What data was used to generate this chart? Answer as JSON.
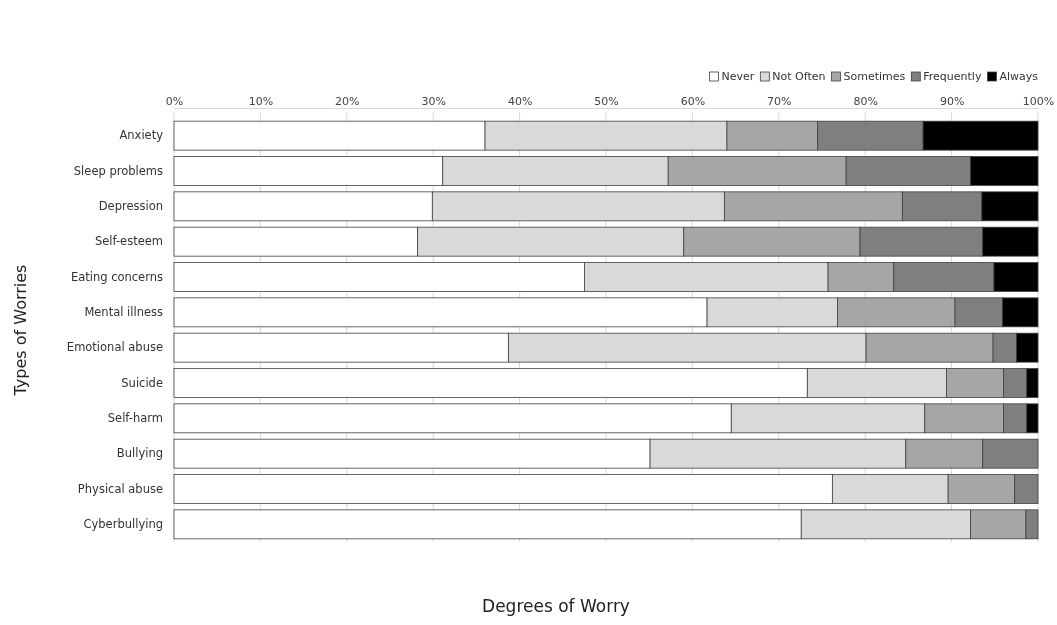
{
  "chart_data": {
    "type": "bar",
    "orientation": "horizontal",
    "stacked": true,
    "xlabel": "Degrees of Worry",
    "ylabel": "Types of Worries",
    "categories": [
      "Anxiety",
      "Sleep problems",
      "Depression",
      "Self-esteem",
      "Eating concerns",
      "Mental illness",
      "Emotional abuse",
      "Suicide",
      "Self-harm",
      "Bullying",
      "Physical abuse",
      "Cyberbullying"
    ],
    "series": [
      {
        "name": "Never",
        "color": "#ffffff",
        "values": [
          36,
          31.1,
          29.9,
          28.2,
          47.5,
          61.7,
          38.7,
          73.3,
          64.5,
          55.1,
          76.2,
          72.6
        ]
      },
      {
        "name": "Not Often",
        "color": "#d9d9d9",
        "values": [
          28,
          26.1,
          33.8,
          30.8,
          28.2,
          15.1,
          41.4,
          16.1,
          22.4,
          29.6,
          13.4,
          19.6
        ]
      },
      {
        "name": "Sometimes",
        "color": "#a6a6a6",
        "values": [
          10.5,
          20.6,
          20.6,
          20.4,
          7.6,
          13.6,
          14.7,
          6.6,
          9.1,
          8.9,
          7.7,
          6.4
        ]
      },
      {
        "name": "Frequently",
        "color": "#7f7f7f",
        "values": [
          12.2,
          14.4,
          9.2,
          14.2,
          11.6,
          5.5,
          2.7,
          2.7,
          2.7,
          6.4,
          2.7,
          1.4
        ]
      },
      {
        "name": "Always",
        "color": "#000000",
        "values": [
          13.3,
          7.8,
          6.5,
          6.4,
          5.1,
          4.1,
          2.5,
          1.3,
          1.3,
          0,
          0,
          0
        ]
      }
    ],
    "xlim": [
      0,
      100
    ],
    "xticks": [
      {
        "value": 0,
        "label": "0%"
      },
      {
        "value": 10,
        "label": "10%"
      },
      {
        "value": 20,
        "label": "20%"
      },
      {
        "value": 30,
        "label": "30%"
      },
      {
        "value": 40,
        "label": "40%"
      },
      {
        "value": 50,
        "label": "50%"
      },
      {
        "value": 60,
        "label": "60%"
      },
      {
        "value": 70,
        "label": "70%"
      },
      {
        "value": 80,
        "label": "80%"
      },
      {
        "value": 90,
        "label": "90%"
      },
      {
        "value": 100,
        "label": "100%"
      }
    ],
    "grid": "x",
    "legend": "top right"
  }
}
